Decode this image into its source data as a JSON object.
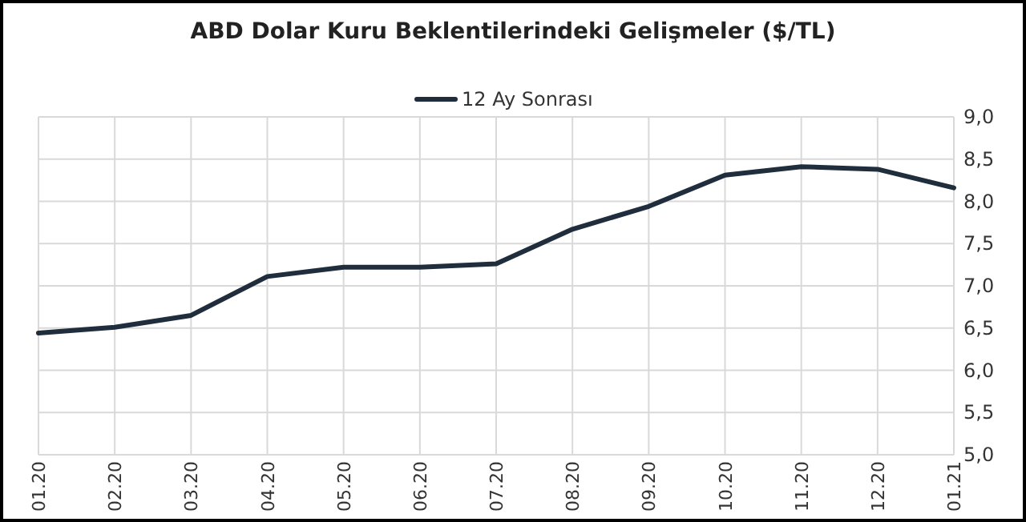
{
  "chart_data": {
    "type": "line",
    "title": "ABD Dolar Kuru Beklentilerindeki Gelişmeler ($/TL)",
    "categories": [
      "01.20",
      "02.20",
      "03.20",
      "04.20",
      "05.20",
      "06.20",
      "07.20",
      "08.20",
      "09.20",
      "10.20",
      "11.20",
      "12.20",
      "01.21"
    ],
    "series": [
      {
        "name": "12 Ay Sonrası",
        "color": "#1f2d3d",
        "values": [
          6.44,
          6.51,
          6.65,
          7.11,
          7.22,
          7.22,
          7.26,
          7.67,
          7.94,
          8.31,
          8.41,
          8.38,
          8.16
        ]
      }
    ],
    "ylim": [
      5,
      9
    ],
    "yticks": [
      {
        "value": 5,
        "label": "5,0"
      },
      {
        "value": 5.5,
        "label": "5,5"
      },
      {
        "value": 6,
        "label": "6,0"
      },
      {
        "value": 6.5,
        "label": "6,5"
      },
      {
        "value": 7,
        "label": "7,0"
      },
      {
        "value": 7.5,
        "label": "7,5"
      },
      {
        "value": 8,
        "label": "8,0"
      },
      {
        "value": 8.5,
        "label": "8,5"
      },
      {
        "value": 9,
        "label": "9,0"
      }
    ],
    "grid": true,
    "legend": "top",
    "line_style": "solid",
    "marker": "none"
  }
}
